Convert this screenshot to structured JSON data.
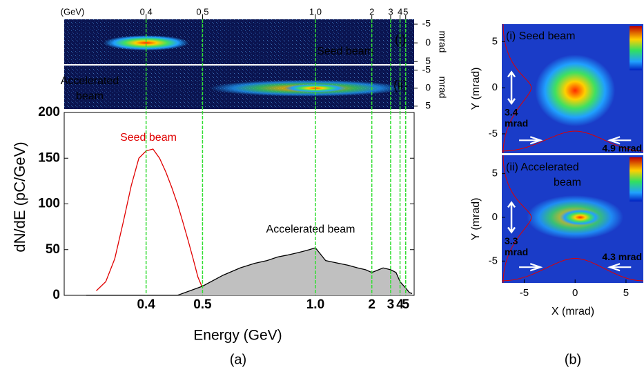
{
  "chart_data": {
    "type": "line",
    "x_label": "Energy (GeV)",
    "y_label": "dN/dE (pC/GeV)",
    "top_axis_unit": "(GeV)",
    "x_scale": "reciprocal",
    "xlim": [
      0.31,
      8
    ],
    "ylim": [
      0,
      200
    ],
    "xticks": [
      0.4,
      0.5,
      {
        "value": 1,
        "label": "1.0"
      },
      2,
      3,
      4,
      5
    ],
    "yticks": [
      0,
      50,
      100,
      150,
      200
    ],
    "tick_line_color": "#33dd33",
    "series": [
      {
        "name": "Seed beam",
        "color": "#e00000",
        "x": [
          0.34,
          0.35,
          0.36,
          0.37,
          0.38,
          0.39,
          0.4,
          0.41,
          0.42,
          0.43,
          0.44,
          0.45,
          0.46,
          0.47,
          0.48,
          0.49,
          0.5,
          0.52
        ],
        "values": [
          5,
          15,
          40,
          80,
          120,
          150,
          158,
          160,
          150,
          135,
          118,
          100,
          80,
          60,
          40,
          20,
          8,
          2
        ]
      },
      {
        "name": "Accelerated beam",
        "color": "#000000",
        "fill": "#c0c0c0",
        "x": [
          0.33,
          0.45,
          0.5,
          0.55,
          0.6,
          0.65,
          0.7,
          0.75,
          0.8,
          0.85,
          0.9,
          0.95,
          1,
          1.1,
          1.2,
          1.4,
          1.6,
          1.8,
          2,
          2.5,
          3,
          3.5,
          4,
          5,
          6,
          7
        ],
        "values": [
          0,
          0,
          10,
          22,
          30,
          35,
          38,
          42,
          44,
          46,
          48,
          50,
          52,
          38,
          36,
          33,
          30,
          28,
          25,
          30,
          28,
          25,
          15,
          8,
          3,
          2
        ]
      }
    ]
  },
  "spectra_images": [
    {
      "axis_unit": "mrad",
      "ylim": [
        5.7,
        -6.3
      ],
      "yticks": [
        -5,
        0,
        5
      ],
      "tag": "(i)",
      "label": [
        "Seed beam"
      ]
    },
    {
      "axis_unit": "mrad",
      "ylim": [
        5.8,
        -6.3
      ],
      "yticks": [
        -5,
        0,
        5
      ],
      "tag": "(ii)",
      "label": [
        "Accelerated",
        "beam"
      ]
    }
  ],
  "profile_images": {
    "x_label": "X (mrad)",
    "y_label": "Y (mrad)",
    "xlim": [
      -7.2,
      6.7
    ],
    "xticks": [
      -5,
      0,
      5
    ],
    "panels": [
      {
        "ylim": [
          -7.1,
          6.9
        ],
        "yticks": [
          -5,
          0,
          5
        ],
        "title": [
          "(i) Seed beam"
        ],
        "vertical_size": [
          "3.4",
          "mrad"
        ],
        "horizontal_size": "4.9 mrad"
      },
      {
        "ylim": [
          -7.5,
          7.1
        ],
        "yticks": [
          -5,
          0,
          5
        ],
        "title": [
          "(ii)  Accelerated",
          "beam"
        ],
        "vertical_size": [
          "3.3",
          "mrad"
        ],
        "horizontal_size": "4.3 mrad"
      }
    ]
  },
  "panel_labels": [
    "(a)",
    "(b)"
  ]
}
